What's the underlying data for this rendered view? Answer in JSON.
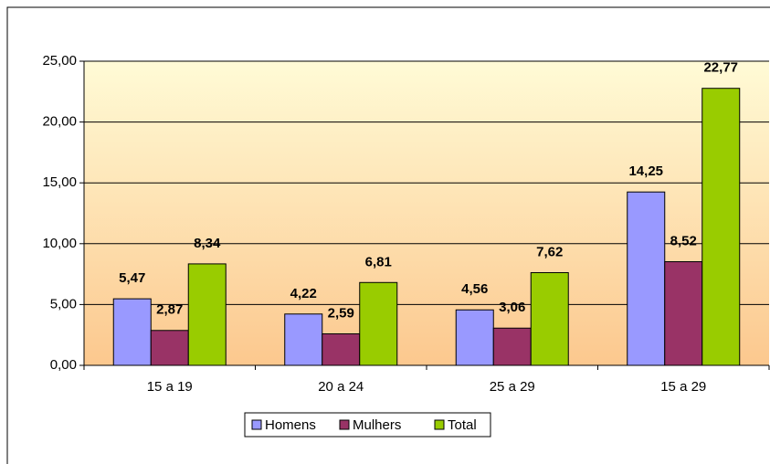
{
  "chart_data": {
    "type": "bar",
    "categories": [
      "15 a 19",
      "20 a 24",
      "25 a 29",
      "15 a 29"
    ],
    "series": [
      {
        "name": "Homens",
        "color": "#9999ff",
        "values": [
          5.47,
          4.22,
          4.56,
          14.25
        ],
        "value_labels": [
          "5,47",
          "4,22",
          "4,56",
          "14,25"
        ]
      },
      {
        "name": "Mulhers",
        "color": "#993366",
        "values": [
          2.87,
          2.59,
          3.06,
          8.52
        ],
        "value_labels": [
          "2,87",
          "2,59",
          "3,06",
          "8,52"
        ]
      },
      {
        "name": "Total",
        "color": "#99cc00",
        "values": [
          8.34,
          6.81,
          7.62,
          22.77
        ],
        "value_labels": [
          "8,34",
          "6,81",
          "7,62",
          "22,77"
        ]
      }
    ],
    "ylim": [
      0,
      25
    ],
    "yticks": [
      {
        "value": 0,
        "label": "0,00"
      },
      {
        "value": 5,
        "label": "5,00"
      },
      {
        "value": 10,
        "label": "10,00"
      },
      {
        "value": 15,
        "label": "15,00"
      },
      {
        "value": 20,
        "label": "20,00"
      },
      {
        "value": 25,
        "label": "25,00"
      }
    ],
    "grid": true,
    "legend": "bottom"
  }
}
